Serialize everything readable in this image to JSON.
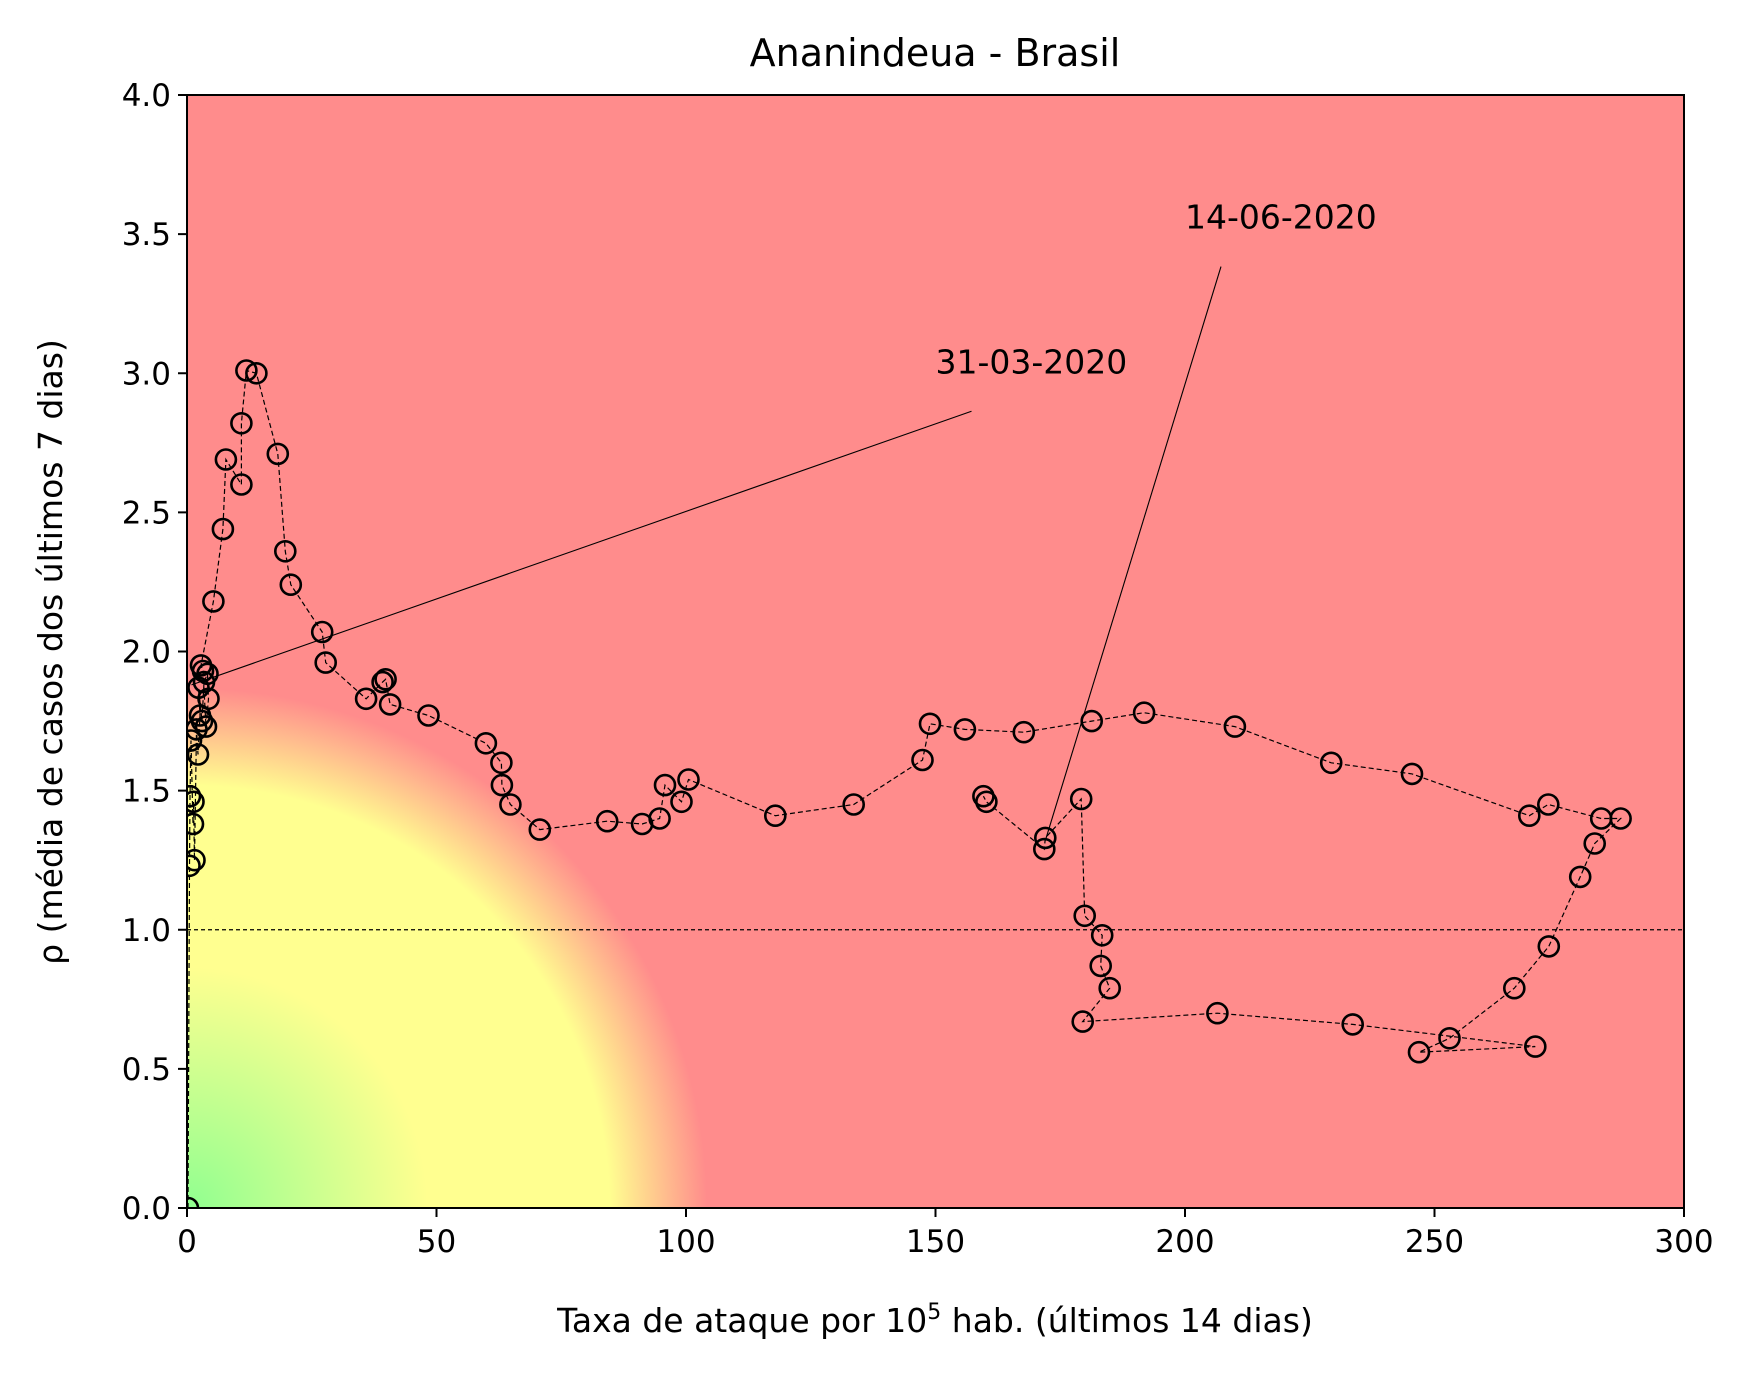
{
  "chart_data": {
    "type": "scatter",
    "title": "Ananindeua - Brasil",
    "xlabel_prefix": "Taxa de ataque por 10",
    "xlabel_sup": "5",
    "xlabel_suffix": " hab. (últimos 14 dias)",
    "ylabel": "ρ (média de casos dos últimos 7 dias)",
    "xlim": [
      0,
      300
    ],
    "ylim": [
      0,
      4
    ],
    "x_ticks": [
      0,
      50,
      100,
      150,
      200,
      250,
      300
    ],
    "y_ticks": [
      0.0,
      0.5,
      1.0,
      1.5,
      2.0,
      2.5,
      3.0,
      3.5,
      4.0
    ],
    "x_tick_labels": [
      "0",
      "50",
      "100",
      "150",
      "200",
      "250",
      "300"
    ],
    "y_tick_labels": [
      "0.0",
      "0.5",
      "1.0",
      "1.5",
      "2.0",
      "2.5",
      "3.0",
      "3.5",
      "4.0"
    ],
    "reference_line_y": 1.0,
    "background": {
      "type": "radial-risk-gradient",
      "colors": {
        "low": "#90ff90",
        "mid": "#ffff90",
        "high": "#ff8c8c"
      }
    },
    "marker_color": "#000000",
    "annotations": [
      {
        "text": "31-03-2020",
        "x": 0.9,
        "y": 1.88,
        "text_x": 150,
        "text_y": 3.0
      },
      {
        "text": "14-06-2020",
        "x": 172,
        "y": 1.32,
        "text_x": 200,
        "text_y": 3.52
      }
    ],
    "series": [
      {
        "x": [
          0.2,
          0.5,
          0.6,
          0.8,
          1.2,
          1.3,
          1.5,
          1.9,
          2.2,
          2.6,
          2.3,
          3.0,
          3.4,
          4.1,
          4.3,
          3.8,
          3.2,
          2.8,
          5.3,
          7.2,
          7.8,
          10.9,
          10.9,
          11.9,
          13.9,
          18.2,
          19.7,
          20.8,
          27.1,
          27.8,
          35.9,
          39.2,
          39.8,
          40.7,
          48.4,
          59.9,
          63.0,
          63.1,
          64.8,
          70.7,
          84.2,
          91.2,
          94.7,
          95.8,
          99.1,
          100.5,
          117.9,
          133.6,
          147.4,
          148.9,
          155.9,
          167.7,
          181.3,
          191.8,
          210.0,
          229.3,
          245.5,
          269.0,
          272.8,
          283.4,
          287.3,
          282.1,
          279.2,
          272.9,
          266.0,
          253.0,
          246.9,
          270.2,
          233.6,
          206.5,
          179.5,
          184.9,
          183.1,
          183.4,
          179.9,
          179.2,
          172.0,
          171.8,
          160.2,
          159.6
        ],
        "y": [
          0.0,
          1.23,
          1.48,
          1.68,
          1.38,
          1.46,
          1.25,
          1.72,
          1.63,
          1.77,
          1.87,
          1.75,
          1.89,
          1.92,
          1.83,
          1.73,
          1.93,
          1.95,
          2.18,
          2.44,
          2.69,
          2.6,
          2.82,
          3.01,
          3.0,
          2.71,
          2.36,
          2.24,
          2.07,
          1.96,
          1.83,
          1.89,
          1.9,
          1.81,
          1.77,
          1.67,
          1.6,
          1.52,
          1.45,
          1.36,
          1.39,
          1.38,
          1.4,
          1.52,
          1.46,
          1.54,
          1.41,
          1.45,
          1.61,
          1.74,
          1.72,
          1.71,
          1.75,
          1.78,
          1.73,
          1.6,
          1.56,
          1.41,
          1.45,
          1.4,
          1.4,
          1.31,
          1.19,
          0.94,
          0.79,
          0.61,
          0.56,
          0.58,
          0.66,
          0.7,
          0.67,
          0.79,
          0.87,
          0.98,
          1.05,
          1.47,
          1.33,
          1.29,
          1.46,
          1.48
        ]
      }
    ]
  }
}
